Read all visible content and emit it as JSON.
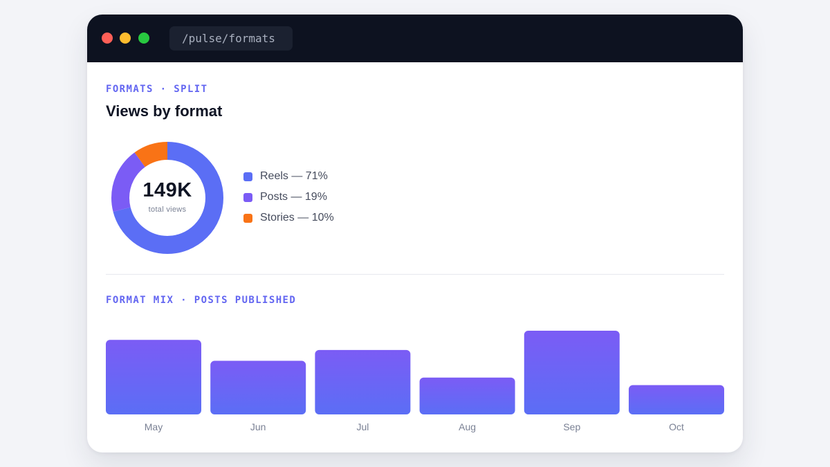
{
  "window": {
    "url": "/pulse/formats"
  },
  "split": {
    "eyebrow": "FORMATS · SPLIT",
    "title": "Views by format",
    "total_value": "149K",
    "total_caption": "total views",
    "legend": [
      {
        "label": "Reels — 71%",
        "color": "#5b6ef5"
      },
      {
        "label": "Posts — 19%",
        "color": "#7b5cf5"
      },
      {
        "label": "Stories — 10%",
        "color": "#f97316"
      }
    ]
  },
  "chart_data": [
    {
      "type": "pie",
      "title": "Views by format",
      "categories": [
        "Reels",
        "Posts",
        "Stories"
      ],
      "values": [
        71,
        19,
        10
      ],
      "colors": [
        "#5b6ef5",
        "#7b5cf5",
        "#f97316"
      ],
      "center_label": "149K",
      "center_caption": "total views"
    },
    {
      "type": "bar",
      "title": "FORMAT MIX · POSTS PUBLISHED",
      "categories": [
        "May",
        "Jun",
        "Jul",
        "Aug",
        "Sep",
        "Oct"
      ],
      "values": [
        0.89,
        0.64,
        0.77,
        0.44,
        1.0,
        0.35
      ],
      "grid": false,
      "colors": {
        "top": "#7b5cf5",
        "bottom": "#5b6ef5"
      }
    }
  ],
  "mix": {
    "eyebrow": "FORMAT MIX · POSTS PUBLISHED"
  }
}
